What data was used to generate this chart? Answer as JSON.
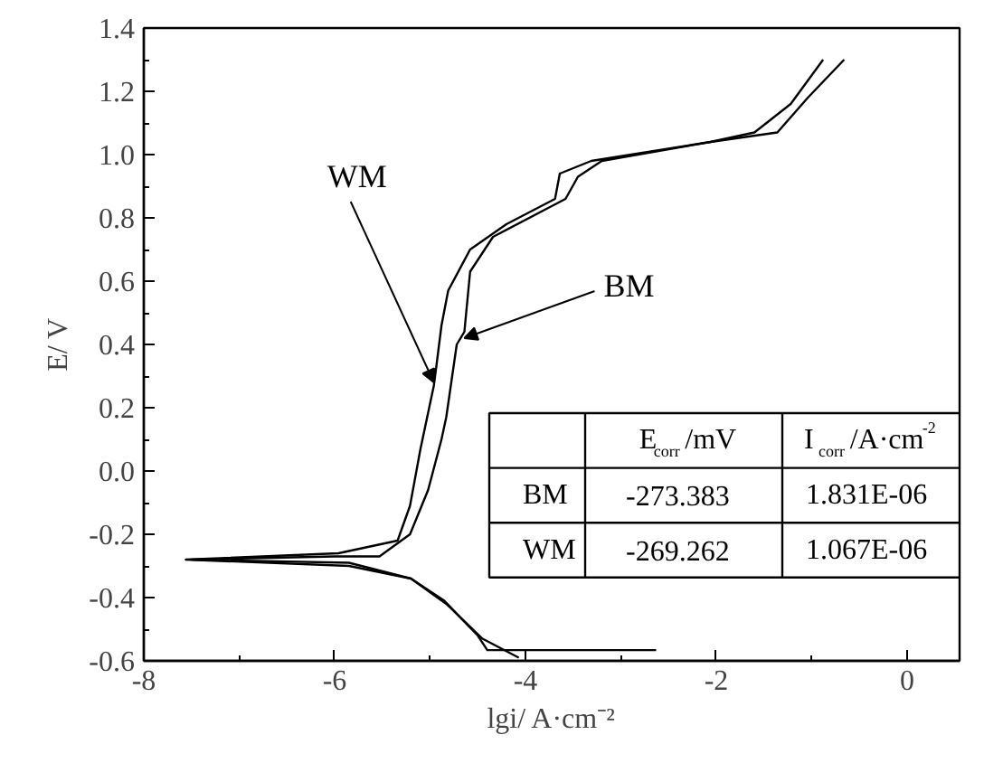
{
  "chart_data": {
    "type": "line",
    "xlabel": "lgi/ A·cm⁻²",
    "ylabel": "E/ V",
    "xlim": [
      -8,
      0.55
    ],
    "ylim": [
      -0.6,
      1.4
    ],
    "xticks": [
      -8,
      {
        "value": -7,
        "label": null
      },
      -6,
      {
        "value": -5,
        "label": null
      },
      -4,
      {
        "value": -3,
        "label": null
      },
      -2,
      {
        "value": -1,
        "label": null
      },
      0
    ],
    "yticks": [
      -0.6,
      {
        "value": -0.5,
        "label": null
      },
      -0.4,
      {
        "value": -0.3,
        "label": null
      },
      -0.2,
      {
        "value": -0.1,
        "label": null
      },
      {
        "value": 0,
        "label": "0.0"
      },
      {
        "value": 0.1,
        "label": null
      },
      0.2,
      {
        "value": 0.3,
        "label": null
      },
      0.4,
      {
        "value": 0.5,
        "label": null
      },
      0.6,
      {
        "value": 0.7,
        "label": null
      },
      0.8,
      {
        "value": 0.9,
        "label": null
      },
      {
        "value": 1,
        "label": "1.0"
      },
      {
        "value": 1.1,
        "label": null
      },
      1.2,
      {
        "value": 1.3,
        "label": null
      },
      1.4
    ],
    "series": [
      {
        "color": "#000000",
        "x": [
          -4.07,
          -4.45,
          -4.83,
          -5.2,
          -5.85,
          -7.56,
          -5.96,
          -5.34,
          -5.21,
          -5.1,
          -4.96,
          -4.93,
          -4.88,
          -4.81,
          -4.58,
          -4.2,
          -3.69,
          -3.64,
          -3.31,
          -2.06,
          -1.6,
          -1.22,
          -0.88
        ],
        "values": [
          -0.59,
          -0.53,
          -0.42,
          -0.34,
          -0.3,
          -0.28,
          -0.26,
          -0.22,
          -0.11,
          0.07,
          0.27,
          0.34,
          0.46,
          0.57,
          0.7,
          0.78,
          0.86,
          0.94,
          0.98,
          1.04,
          1.07,
          1.16,
          1.3
        ]
      },
      {
        "color": "#000000",
        "x": [
          -2.63,
          -4.4,
          -4.5,
          -4.85,
          -5.2,
          -5.85,
          -7.5,
          -6.0,
          -5.53,
          -5.21,
          -5.02,
          -4.88,
          -4.83,
          -4.72,
          -4.64,
          -4.58,
          -4.34,
          -3.58,
          -3.45,
          -3.2,
          -2.06,
          -1.36,
          -1.04,
          -0.66
        ],
        "values": [
          -0.566,
          -0.566,
          -0.52,
          -0.41,
          -0.34,
          -0.29,
          -0.28,
          -0.27,
          -0.27,
          -0.2,
          -0.06,
          0.1,
          0.17,
          0.4,
          0.44,
          0.63,
          0.74,
          0.86,
          0.93,
          0.98,
          1.04,
          1.07,
          1.18,
          1.3
        ]
      }
    ],
    "annotations": [
      {
        "text": "WM",
        "x": -4.96,
        "y": 0.28
      },
      {
        "text": "BM",
        "x": -4.64,
        "y": 0.42
      },
      "E$_{corr}$/mV",
      "I$_{corr}$/A·cm$^{-2}$",
      "BM",
      "-273.383",
      "1.831E-06",
      "WM",
      "-269.262",
      "1.067E-06"
    ]
  }
}
